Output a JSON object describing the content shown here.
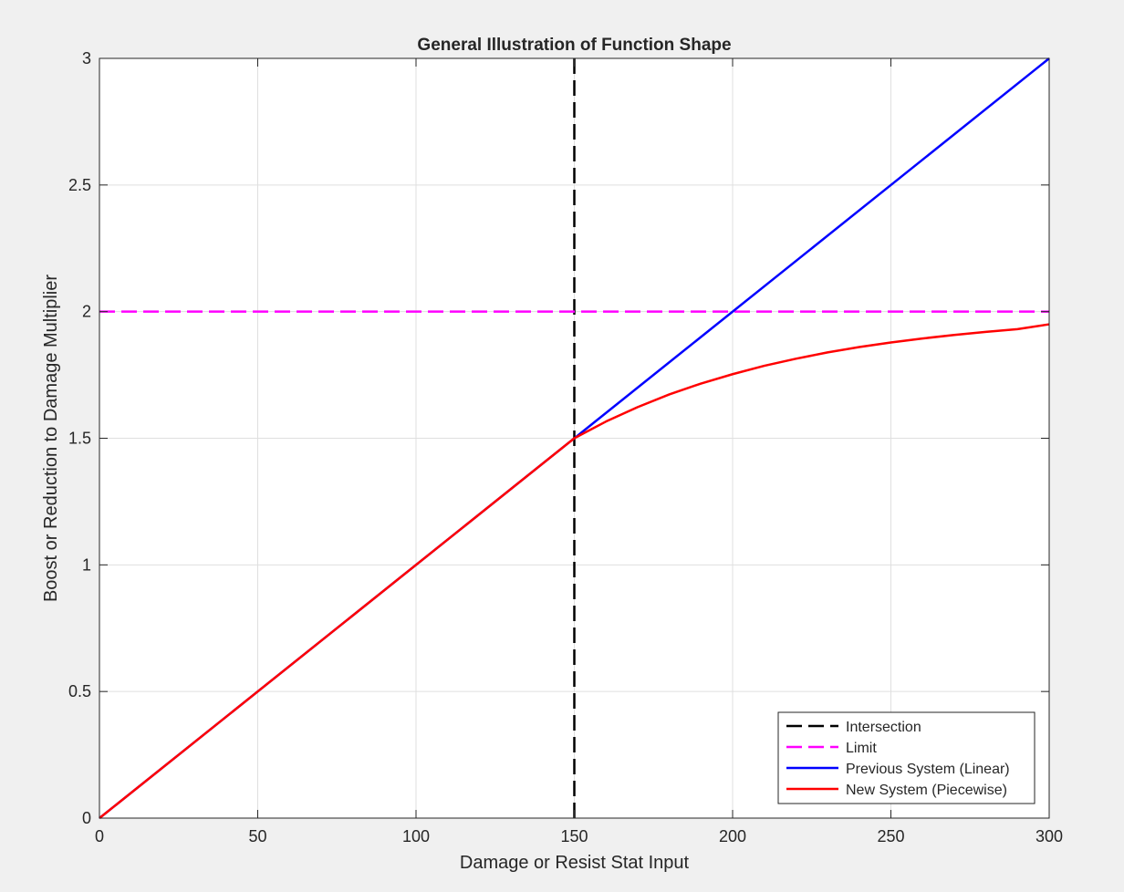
{
  "chart_data": {
    "type": "line",
    "title": "General Illustration of Function Shape",
    "xlabel": "Damage or Resist Stat Input",
    "ylabel": "Boost or Reduction to Damage Multiplier",
    "xlim": [
      0,
      300
    ],
    "ylim": [
      0,
      3
    ],
    "xticks": [
      0,
      50,
      100,
      150,
      200,
      250,
      300
    ],
    "yticks": [
      0,
      0.5,
      1,
      1.5,
      2,
      2.5,
      3
    ],
    "grid": true,
    "legend_position": "bottom-right",
    "series": [
      {
        "name": "Intersection",
        "style": "dashed",
        "color": "#000000",
        "x": [
          150,
          150
        ],
        "y": [
          0,
          3
        ]
      },
      {
        "name": "Limit",
        "style": "dashed",
        "color": "#ff00ff",
        "x": [
          0,
          300
        ],
        "y": [
          2,
          2
        ]
      },
      {
        "name": "Previous System (Linear)",
        "style": "solid",
        "color": "#0000ff",
        "x": [
          0,
          300
        ],
        "y": [
          0,
          3
        ]
      },
      {
        "name": "New System (Piecewise)",
        "style": "solid",
        "color": "#ff0000",
        "x": [
          0,
          150,
          160,
          170,
          180,
          190,
          200,
          210,
          220,
          230,
          240,
          250,
          260,
          270,
          280,
          290,
          300
        ],
        "y": [
          0,
          1.5,
          1.566,
          1.623,
          1.673,
          1.716,
          1.753,
          1.786,
          1.814,
          1.839,
          1.86,
          1.878,
          1.894,
          1.908,
          1.92,
          1.931,
          1.95
        ]
      }
    ]
  }
}
